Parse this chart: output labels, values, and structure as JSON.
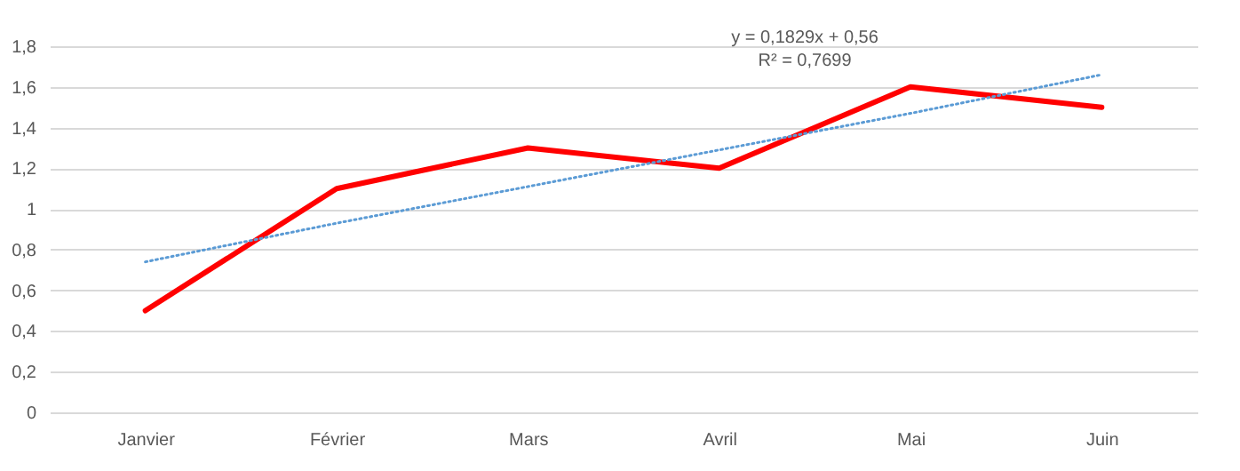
{
  "chart_data": {
    "type": "line",
    "categories": [
      "Janvier",
      "Février",
      "Mars",
      "Avril",
      "Mai",
      "Juin"
    ],
    "series": [
      {
        "color": "#ff0000",
        "values": [
          0.5,
          1.1,
          1.3,
          1.2,
          1.6,
          1.5
        ],
        "line_style": "solid"
      },
      {
        "type": "line",
        "x": [
          "Janvier",
          "Février",
          "Mars",
          "Avril",
          "Mai",
          "Juin"
        ],
        "color": "#5b9bd5",
        "values": [
          0.74,
          0.93,
          1.11,
          1.29,
          1.47,
          1.66
        ],
        "line_style": "dotted"
      }
    ],
    "ylim": [
      0,
      1.8
    ],
    "yticks": [
      0,
      {
        "value": 0.2,
        "label": "0,2"
      },
      {
        "value": 0.4,
        "label": "0,4"
      },
      {
        "value": 0.6,
        "label": "0,6"
      },
      {
        "value": 0.8,
        "label": "0,8"
      },
      1,
      {
        "value": 1.2,
        "label": "1,2"
      },
      {
        "value": 1.4,
        "label": "1,4"
      },
      {
        "value": 1.6,
        "label": "1,6"
      },
      {
        "value": 1.8,
        "label": "1,8"
      }
    ],
    "grid": "y",
    "legend": false,
    "marker": "none",
    "annotations": [
      "y = 0,1829x + 0,56",
      "R² = 0,7699"
    ]
  }
}
